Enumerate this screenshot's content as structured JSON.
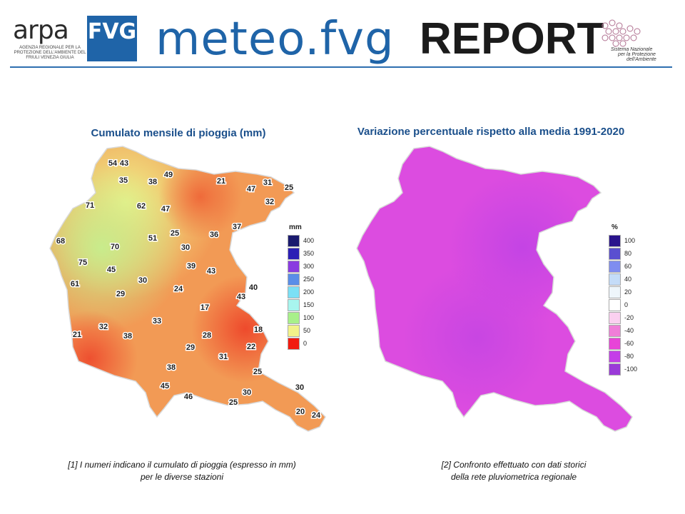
{
  "header": {
    "arpa_word": "ARPA",
    "arpa_fvg": "FVG",
    "arpa_subtitle": "AGENZIA REGIONALE PER LA PROTEZIONE DELL'AMBIENTE DEL FRIULI VENEZIA GIULIA",
    "meteo_title": "meteo.fvg",
    "report_title": "REPORT",
    "snpa_text_1": "Sistema Nazionale",
    "snpa_text_2": "per la Protezione",
    "snpa_text_3": "dell'Ambiente"
  },
  "colors": {
    "brand_blue": "#1f64a8",
    "title_blue": "#1a4f8b"
  },
  "map_left": {
    "title": "Cumulato mensile di pioggia (mm)",
    "legend_unit": "mm",
    "legend": [
      {
        "label": "400",
        "color": "#1a1a6e"
      },
      {
        "label": "350",
        "color": "#2b1fb5"
      },
      {
        "label": "300",
        "color": "#8a3ce0"
      },
      {
        "label": "250",
        "color": "#5a8ee8"
      },
      {
        "label": "200",
        "color": "#7be0f5"
      },
      {
        "label": "150",
        "color": "#a8f5ee"
      },
      {
        "label": "100",
        "color": "#a8f08a"
      },
      {
        "label": "50",
        "color": "#f2f28a"
      },
      {
        "label": "0",
        "color": "#f21a10"
      }
    ],
    "stations": [
      {
        "v": "54"
      },
      {
        "v": "43"
      },
      {
        "v": "49"
      },
      {
        "v": "35"
      },
      {
        "v": "38"
      },
      {
        "v": "21"
      },
      {
        "v": "47"
      },
      {
        "v": "31"
      },
      {
        "v": "25"
      },
      {
        "v": "32"
      },
      {
        "v": "71"
      },
      {
        "v": "62"
      },
      {
        "v": "47"
      },
      {
        "v": "37"
      },
      {
        "v": "68"
      },
      {
        "v": "51"
      },
      {
        "v": "25"
      },
      {
        "v": "36"
      },
      {
        "v": "70"
      },
      {
        "v": "30"
      },
      {
        "v": "75"
      },
      {
        "v": "45"
      },
      {
        "v": "39"
      },
      {
        "v": "43"
      },
      {
        "v": "61"
      },
      {
        "v": "30"
      },
      {
        "v": "29"
      },
      {
        "v": "24"
      },
      {
        "v": "40"
      },
      {
        "v": "43"
      },
      {
        "v": "17"
      },
      {
        "v": "33"
      },
      {
        "v": "32"
      },
      {
        "v": "21"
      },
      {
        "v": "38"
      },
      {
        "v": "28"
      },
      {
        "v": "18"
      },
      {
        "v": "29"
      },
      {
        "v": "22"
      },
      {
        "v": "31"
      },
      {
        "v": "38"
      },
      {
        "v": "25"
      },
      {
        "v": "45"
      },
      {
        "v": "46"
      },
      {
        "v": "30"
      },
      {
        "v": "25"
      },
      {
        "v": "30"
      },
      {
        "v": "20"
      },
      {
        "v": "24"
      }
    ],
    "caption_line1": "[1] I numeri indicano il cumulato di pioggia (espresso in mm)",
    "caption_line2": "per le diverse stazioni"
  },
  "map_right": {
    "title": "Variazione percentuale rispetto alla media 1991-2020",
    "legend_unit": "%",
    "legend": [
      {
        "label": "100",
        "color": "#2a148c"
      },
      {
        "label": "80",
        "color": "#5a4fd0"
      },
      {
        "label": "60",
        "color": "#7f8df0"
      },
      {
        "label": "40",
        "color": "#c4dcf8"
      },
      {
        "label": "20",
        "color": "#eef6fb"
      },
      {
        "label": "0",
        "color": "#ffffff"
      },
      {
        "label": "-20",
        "color": "#fbd0f0"
      },
      {
        "label": "-40",
        "color": "#f07ed8"
      },
      {
        "label": "-60",
        "color": "#e844d8"
      },
      {
        "label": "-80",
        "color": "#c43ee8"
      },
      {
        "label": "-100",
        "color": "#9a3ad8"
      }
    ],
    "caption_line1": "[2] Confronto  effettuato con dati storici",
    "caption_line2": "della rete pluviometrica regionale"
  }
}
